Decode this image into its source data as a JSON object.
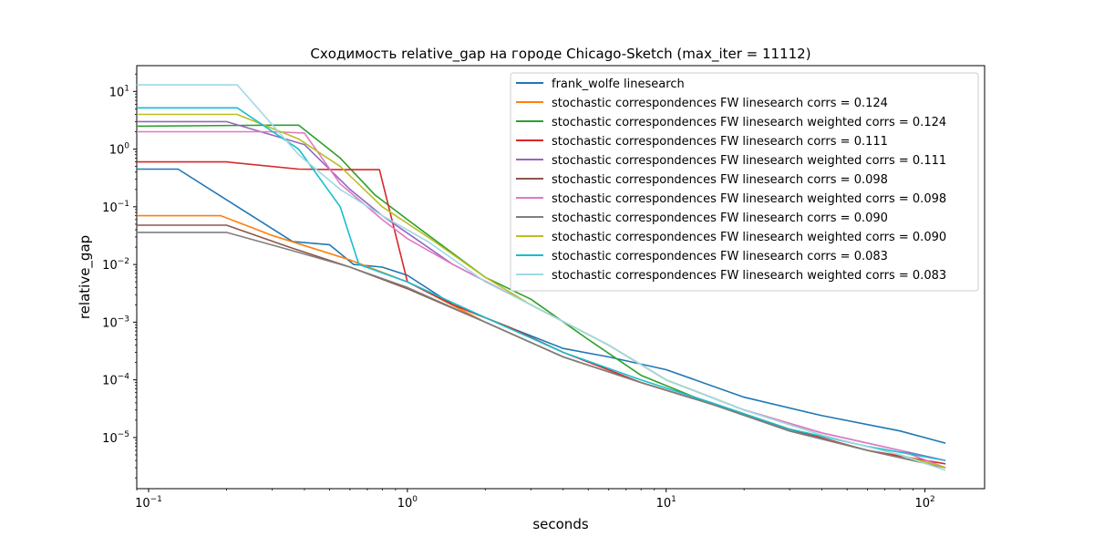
{
  "chart_data": {
    "type": "line",
    "title": "Сходимость relative_gap на городе Chicago-Sketch  (max_iter = 11112)",
    "xlabel": "seconds",
    "ylabel": "relative_gap",
    "xscale": "log",
    "yscale": "log",
    "xlim": [
      0.09,
      170
    ],
    "ylim": [
      1.3e-06,
      28
    ],
    "x_ticks": [
      {
        "value": 0.1,
        "base": "10",
        "exp": "−1"
      },
      {
        "value": 1,
        "base": "10",
        "exp": "0"
      },
      {
        "value": 10,
        "base": "10",
        "exp": "1"
      },
      {
        "value": 100,
        "base": "10",
        "exp": "2"
      }
    ],
    "y_ticks": [
      {
        "value": 1e-05,
        "base": "10",
        "exp": "−5"
      },
      {
        "value": 0.0001,
        "base": "10",
        "exp": "−4"
      },
      {
        "value": 0.001,
        "base": "10",
        "exp": "−3"
      },
      {
        "value": 0.01,
        "base": "10",
        "exp": "−2"
      },
      {
        "value": 0.1,
        "base": "10",
        "exp": "−1"
      },
      {
        "value": 1,
        "base": "10",
        "exp": "0"
      },
      {
        "value": 10,
        "base": "10",
        "exp": "1"
      }
    ],
    "grid": false,
    "legend_position": "top-right",
    "series": [
      {
        "name": "frank_wolfe linesearch",
        "color": "#1f77b4",
        "x": [
          0.09,
          0.13,
          0.25,
          0.36,
          0.5,
          0.62,
          0.8,
          1.0,
          1.5,
          2.5,
          4,
          6,
          10,
          20,
          40,
          80,
          120
        ],
        "y": [
          0.45,
          0.45,
          0.07,
          0.025,
          0.022,
          0.01,
          0.009,
          0.0065,
          0.002,
          0.0008,
          0.00035,
          0.00025,
          0.00015,
          5e-05,
          2.4e-05,
          1.3e-05,
          8e-06
        ]
      },
      {
        "name": "stochastic correspondences FW linesearch corrs = 0.124",
        "color": "#ff7f0e",
        "x": [
          0.09,
          0.19,
          0.3,
          0.6,
          1.0,
          2,
          4,
          8,
          15,
          30,
          60,
          120
        ],
        "y": [
          0.07,
          0.07,
          0.032,
          0.012,
          0.005,
          0.001,
          0.00025,
          9e-05,
          3.8e-05,
          1.3e-05,
          6e-06,
          3e-06
        ]
      },
      {
        "name": "stochastic correspondences FW linesearch weighted corrs = 0.124",
        "color": "#2ca02c",
        "x": [
          0.09,
          0.3,
          0.38,
          0.55,
          0.75,
          1.0,
          1.3,
          2,
          3,
          5,
          8,
          15,
          30,
          60,
          120
        ],
        "y": [
          2.5,
          2.6,
          2.6,
          0.7,
          0.16,
          0.06,
          0.025,
          0.006,
          0.0025,
          0.0005,
          0.00012,
          3.8e-05,
          1.3e-05,
          6e-06,
          3e-06
        ]
      },
      {
        "name": "stochastic correspondences FW linesearch corrs = 0.111",
        "color": "#d62728",
        "x": [
          0.09,
          0.2,
          0.38,
          0.55,
          0.78,
          1.0,
          1.5,
          2.5,
          4,
          8,
          15,
          30,
          60,
          120
        ],
        "y": [
          0.6,
          0.6,
          0.45,
          0.44,
          0.44,
          0.005,
          0.002,
          0.0008,
          0.0003,
          9e-05,
          3.8e-05,
          1.4e-05,
          6e-06,
          3.5e-06
        ]
      },
      {
        "name": "stochastic correspondences FW linesearch weighted corrs = 0.111",
        "color": "#9467bd",
        "x": [
          0.09,
          0.2,
          0.4,
          0.6,
          0.8,
          1.0,
          1.5,
          3,
          6,
          10,
          20,
          40,
          80,
          120
        ],
        "y": [
          3.0,
          3.0,
          1.2,
          0.2,
          0.07,
          0.035,
          0.01,
          0.002,
          0.0004,
          0.0001,
          3e-05,
          1.2e-05,
          6e-06,
          4e-06
        ]
      },
      {
        "name": "stochastic correspondences FW linesearch corrs = 0.098",
        "color": "#8c564b",
        "x": [
          0.09,
          0.2,
          0.35,
          0.6,
          1.0,
          2,
          4,
          8,
          15,
          30,
          60,
          120
        ],
        "y": [
          0.048,
          0.048,
          0.02,
          0.009,
          0.0038,
          0.001,
          0.00025,
          9e-05,
          3.8e-05,
          1.3e-05,
          6e-06,
          3e-06
        ]
      },
      {
        "name": "stochastic correspondences FW linesearch weighted corrs = 0.098",
        "color": "#e377c2",
        "x": [
          0.09,
          0.3,
          0.4,
          0.55,
          0.8,
          1.0,
          1.5,
          3,
          6,
          10,
          20,
          40,
          80,
          120
        ],
        "y": [
          2.0,
          2.0,
          1.9,
          0.25,
          0.06,
          0.028,
          0.01,
          0.002,
          0.0004,
          0.0001,
          3e-05,
          1.2e-05,
          6e-06,
          3e-06
        ]
      },
      {
        "name": "stochastic correspondences FW linesearch corrs = 0.090",
        "color": "#7f7f7f",
        "x": [
          0.09,
          0.2,
          0.35,
          0.6,
          1.0,
          2,
          4,
          8,
          15,
          30,
          60,
          120
        ],
        "y": [
          0.036,
          0.036,
          0.018,
          0.009,
          0.004,
          0.001,
          0.00025,
          9e-05,
          3.8e-05,
          1.3e-05,
          6e-06,
          3e-06
        ]
      },
      {
        "name": "stochastic correspondences FW linesearch weighted corrs = 0.090",
        "color": "#bcbd22",
        "x": [
          0.09,
          0.22,
          0.38,
          0.55,
          0.8,
          1.2,
          2,
          3,
          6,
          10,
          20,
          40,
          80,
          120
        ],
        "y": [
          4.0,
          4.0,
          1.5,
          0.5,
          0.1,
          0.03,
          0.006,
          0.002,
          0.0004,
          0.0001,
          3e-05,
          1.1e-05,
          5e-06,
          3e-06
        ]
      },
      {
        "name": "stochastic correspondences FW linesearch corrs = 0.083",
        "color": "#17becf",
        "x": [
          0.09,
          0.22,
          0.38,
          0.55,
          0.65,
          1.0,
          2,
          4,
          8,
          15,
          30,
          60,
          120
        ],
        "y": [
          5.2,
          5.2,
          1.0,
          0.1,
          0.01,
          0.005,
          0.0012,
          0.0003,
          0.0001,
          4e-05,
          1.4e-05,
          7e-06,
          4e-06
        ]
      },
      {
        "name": "stochastic correspondences FW linesearch weighted corrs = 0.083",
        "color": "#9edae5",
        "x": [
          0.09,
          0.22,
          0.38,
          0.55,
          0.8,
          1.2,
          2,
          3,
          6,
          10,
          20,
          40,
          80,
          120
        ],
        "y": [
          13,
          13,
          0.8,
          0.2,
          0.07,
          0.025,
          0.005,
          0.002,
          0.0004,
          0.0001,
          3e-05,
          1.1e-05,
          5e-06,
          2.7e-06
        ]
      }
    ]
  }
}
